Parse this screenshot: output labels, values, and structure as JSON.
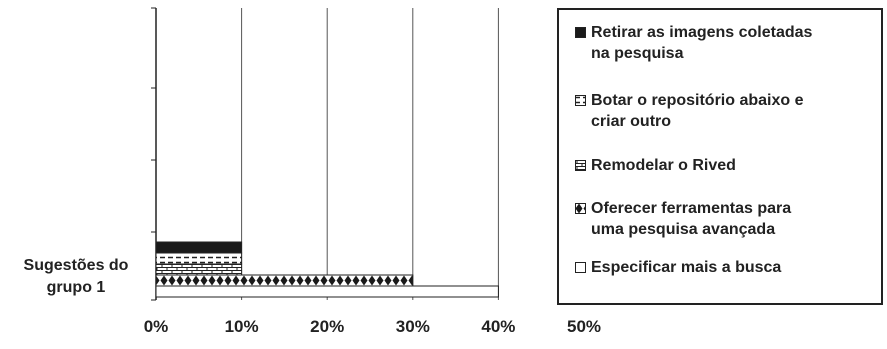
{
  "chart_data": {
    "type": "bar",
    "orientation": "horizontal",
    "categories": [
      "Sugestões do grupo 1"
    ],
    "category_lines": [
      "Sugestões do",
      "grupo 1"
    ],
    "series": [
      {
        "name": "Retirar as imagens coletadas na pesquisa",
        "lines": [
          "Retirar as imagens coletadas",
          "na pesquisa"
        ],
        "values": [
          10
        ],
        "pattern": "solid"
      },
      {
        "name": "Botar o repositório abaixo e criar outro",
        "lines": [
          "Botar o repositório abaixo e",
          "criar outro"
        ],
        "values": [
          10
        ],
        "pattern": "dashes"
      },
      {
        "name": "Remodelar o Rived",
        "lines": [
          "Remodelar o Rived"
        ],
        "values": [
          10
        ],
        "pattern": "bricks"
      },
      {
        "name": "Oferecer ferramentas para uma pesquisa avançada",
        "lines": [
          "Oferecer ferramentas para",
          "uma pesquisa avançada"
        ],
        "values": [
          30
        ],
        "pattern": "diamonds"
      },
      {
        "name": "Especificar mais a busca",
        "lines": [
          "Especificar mais a busca"
        ],
        "values": [
          40
        ],
        "pattern": "empty"
      }
    ],
    "xlim": [
      0,
      50
    ],
    "x_ticks": [
      "0%",
      "10%",
      "20%",
      "30%",
      "40%",
      "50%"
    ],
    "grid": true,
    "legend": "right"
  }
}
